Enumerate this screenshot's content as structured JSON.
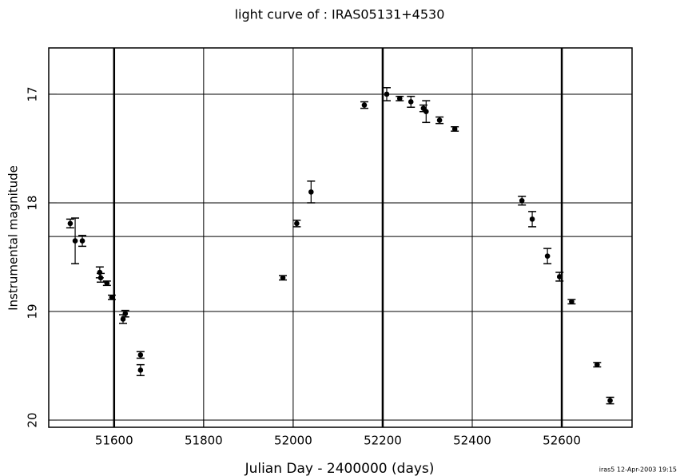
{
  "chart_data": {
    "type": "scatter",
    "title": "light curve of : IRAS05131+4530",
    "x_label": "Julian Day - 2400000 (days)",
    "y_label": "Instrumental magnitude",
    "footer": "iras5 12-Apr-2003 19:15",
    "x": [
      51502,
      51513,
      51529,
      51568,
      51570,
      51584,
      51595,
      51620,
      51625,
      51659,
      51659,
      51977,
      52008,
      52040,
      52159,
      52209,
      52238,
      52263,
      52291,
      52297,
      52327,
      52361,
      52511,
      52534,
      52568,
      52595,
      52622,
      52679,
      52708
    ],
    "values": [
      18.19,
      18.35,
      18.35,
      18.64,
      18.69,
      18.74,
      18.87,
      19.07,
      19.02,
      19.4,
      19.54,
      18.69,
      18.19,
      17.9,
      17.1,
      17.0,
      17.04,
      17.07,
      17.13,
      17.16,
      17.24,
      17.32,
      17.98,
      18.15,
      18.49,
      18.68,
      18.91,
      19.49,
      19.82
    ],
    "errors": [
      0.04,
      0.21,
      0.05,
      0.05,
      0.04,
      0.02,
      0.02,
      0.04,
      0.03,
      0.03,
      0.05,
      0.02,
      0.03,
      0.1,
      0.03,
      0.06,
      0.02,
      0.05,
      0.03,
      0.1,
      0.03,
      0.02,
      0.04,
      0.07,
      0.07,
      0.04,
      0.02,
      0.02,
      0.03
    ],
    "color": "#000000",
    "xlim": [
      51454,
      52757
    ],
    "ylim": [
      20.066,
      16.574
    ],
    "xticks": [
      51600,
      51800,
      52000,
      52200,
      52400,
      52600
    ],
    "yticks": [
      17,
      18,
      19,
      20
    ],
    "grid": true,
    "heavy_xlines": [
      51600,
      52200,
      52600
    ],
    "reference_yline": 18.31
  }
}
